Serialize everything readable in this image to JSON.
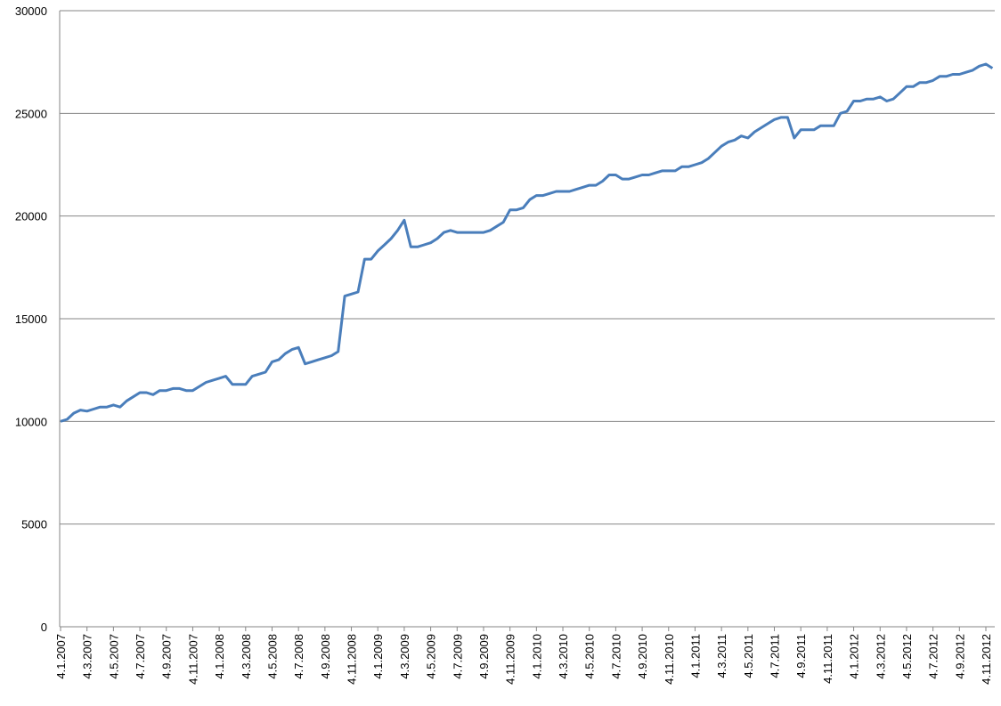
{
  "chart_data": {
    "type": "line",
    "categories": [
      "4.1.2007",
      null,
      null,
      null,
      "4.3.2007",
      null,
      null,
      null,
      "4.5.2007",
      null,
      null,
      null,
      "4.7.2007",
      null,
      null,
      null,
      "4.9.2007",
      null,
      null,
      null,
      "4.11.2007",
      null,
      null,
      null,
      "4.1.2008",
      null,
      null,
      null,
      "4.3.2008",
      null,
      null,
      null,
      "4.5.2008",
      null,
      null,
      null,
      "4.7.2008",
      null,
      null,
      null,
      "4.9.2008",
      null,
      null,
      null,
      "4.11.2008",
      null,
      null,
      null,
      "4.1.2009",
      null,
      null,
      null,
      "4.3.2009",
      null,
      null,
      null,
      "4.5.2009",
      null,
      null,
      null,
      "4.7.2009",
      null,
      null,
      null,
      "4.9.2009",
      null,
      null,
      null,
      "4.11.2009",
      null,
      null,
      null,
      "4.1.2010",
      null,
      null,
      null,
      "4.3.2010",
      null,
      null,
      null,
      "4.5.2010",
      null,
      null,
      null,
      "4.7.2010",
      null,
      null,
      null,
      "4.9.2010",
      null,
      null,
      null,
      "4.11.2010",
      null,
      null,
      null,
      "4.1.2011",
      null,
      null,
      null,
      "4.3.2011",
      null,
      null,
      null,
      "4.5.2011",
      null,
      null,
      null,
      "4.7.2011",
      null,
      null,
      null,
      "4.9.2011",
      null,
      null,
      null,
      "4.11.2011",
      null,
      null,
      null,
      "4.1.2012",
      null,
      null,
      null,
      "4.3.2012",
      null,
      null,
      null,
      "4.5.2012",
      null,
      null,
      null,
      "4.7.2012",
      null,
      null,
      null,
      "4.9.2012",
      null,
      null,
      null,
      "4.11.2012",
      null
    ],
    "series": [
      {
        "color": "#4a7ebb",
        "values": [
          10000,
          10100,
          10400,
          10550,
          10500,
          10600,
          10700,
          10700,
          10800,
          10700,
          11000,
          11200,
          11400,
          11400,
          11300,
          11500,
          11500,
          11600,
          11600,
          11500,
          11500,
          11700,
          11900,
          12000,
          12100,
          12200,
          11800,
          11800,
          11800,
          12200,
          12300,
          12400,
          12900,
          13000,
          13300,
          13500,
          13600,
          12800,
          12900,
          13000,
          13100,
          13200,
          13400,
          16100,
          16200,
          16300,
          17900,
          17900,
          18300,
          18600,
          18900,
          19300,
          19800,
          18500,
          18500,
          18600,
          18700,
          18900,
          19200,
          19300,
          19200,
          19200,
          19200,
          19200,
          19200,
          19300,
          19500,
          19700,
          20300,
          20300,
          20400,
          20800,
          21000,
          21000,
          21100,
          21200,
          21200,
          21200,
          21300,
          21400,
          21500,
          21500,
          21700,
          22000,
          22000,
          21800,
          21800,
          21900,
          22000,
          22000,
          22100,
          22200,
          22200,
          22200,
          22400,
          22400,
          22500,
          22600,
          22800,
          23100,
          23400,
          23600,
          23700,
          23900,
          23800,
          24100,
          24300,
          24500,
          24700,
          24800,
          24800,
          23800,
          24200,
          24200,
          24200,
          24400,
          24400,
          24400,
          25000,
          25100,
          25600,
          25600,
          25700,
          25700,
          25800,
          25600,
          25700,
          26000,
          26300,
          26300,
          26500,
          26500,
          26600,
          26800,
          26800,
          26900,
          26900,
          27000,
          27100,
          27300,
          27400,
          27200
        ]
      }
    ],
    "ylim": [
      0,
      30000
    ],
    "yticks": [
      0,
      5000,
      10000,
      15000,
      20000,
      25000,
      30000
    ],
    "grid": true
  }
}
